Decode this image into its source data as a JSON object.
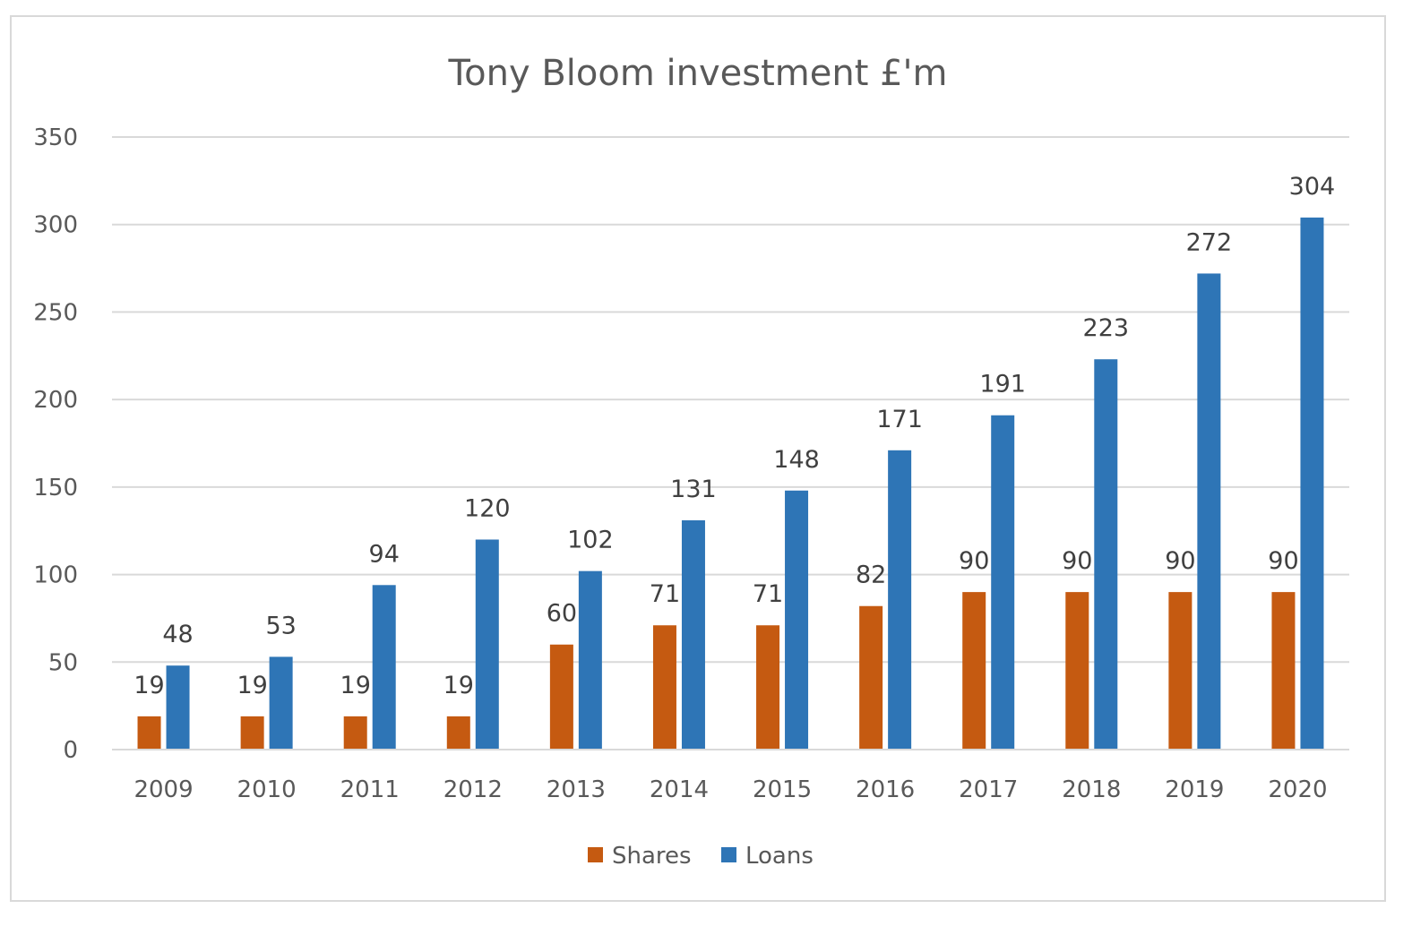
{
  "chart_data": {
    "type": "bar",
    "title": "Tony Bloom investment £'m",
    "xlabel": "",
    "ylabel": "",
    "categories": [
      "2009",
      "2010",
      "2011",
      "2012",
      "2013",
      "2014",
      "2015",
      "2016",
      "2017",
      "2018",
      "2019",
      "2020"
    ],
    "series": [
      {
        "name": "Shares",
        "color": "#c55a11",
        "values": [
          19,
          19,
          19,
          19,
          60,
          71,
          71,
          82,
          90,
          90,
          90,
          90
        ]
      },
      {
        "name": "Loans",
        "color": "#2e75b6",
        "values": [
          48,
          53,
          94,
          120,
          102,
          131,
          148,
          171,
          191,
          223,
          272,
          304
        ]
      }
    ],
    "ylim": [
      0,
      350
    ],
    "yticks": [
      0,
      50,
      100,
      150,
      200,
      250,
      300,
      350
    ],
    "grid": true,
    "gridline_color": "#d9d9d9",
    "data_labels": true,
    "legend_position": "bottom"
  }
}
